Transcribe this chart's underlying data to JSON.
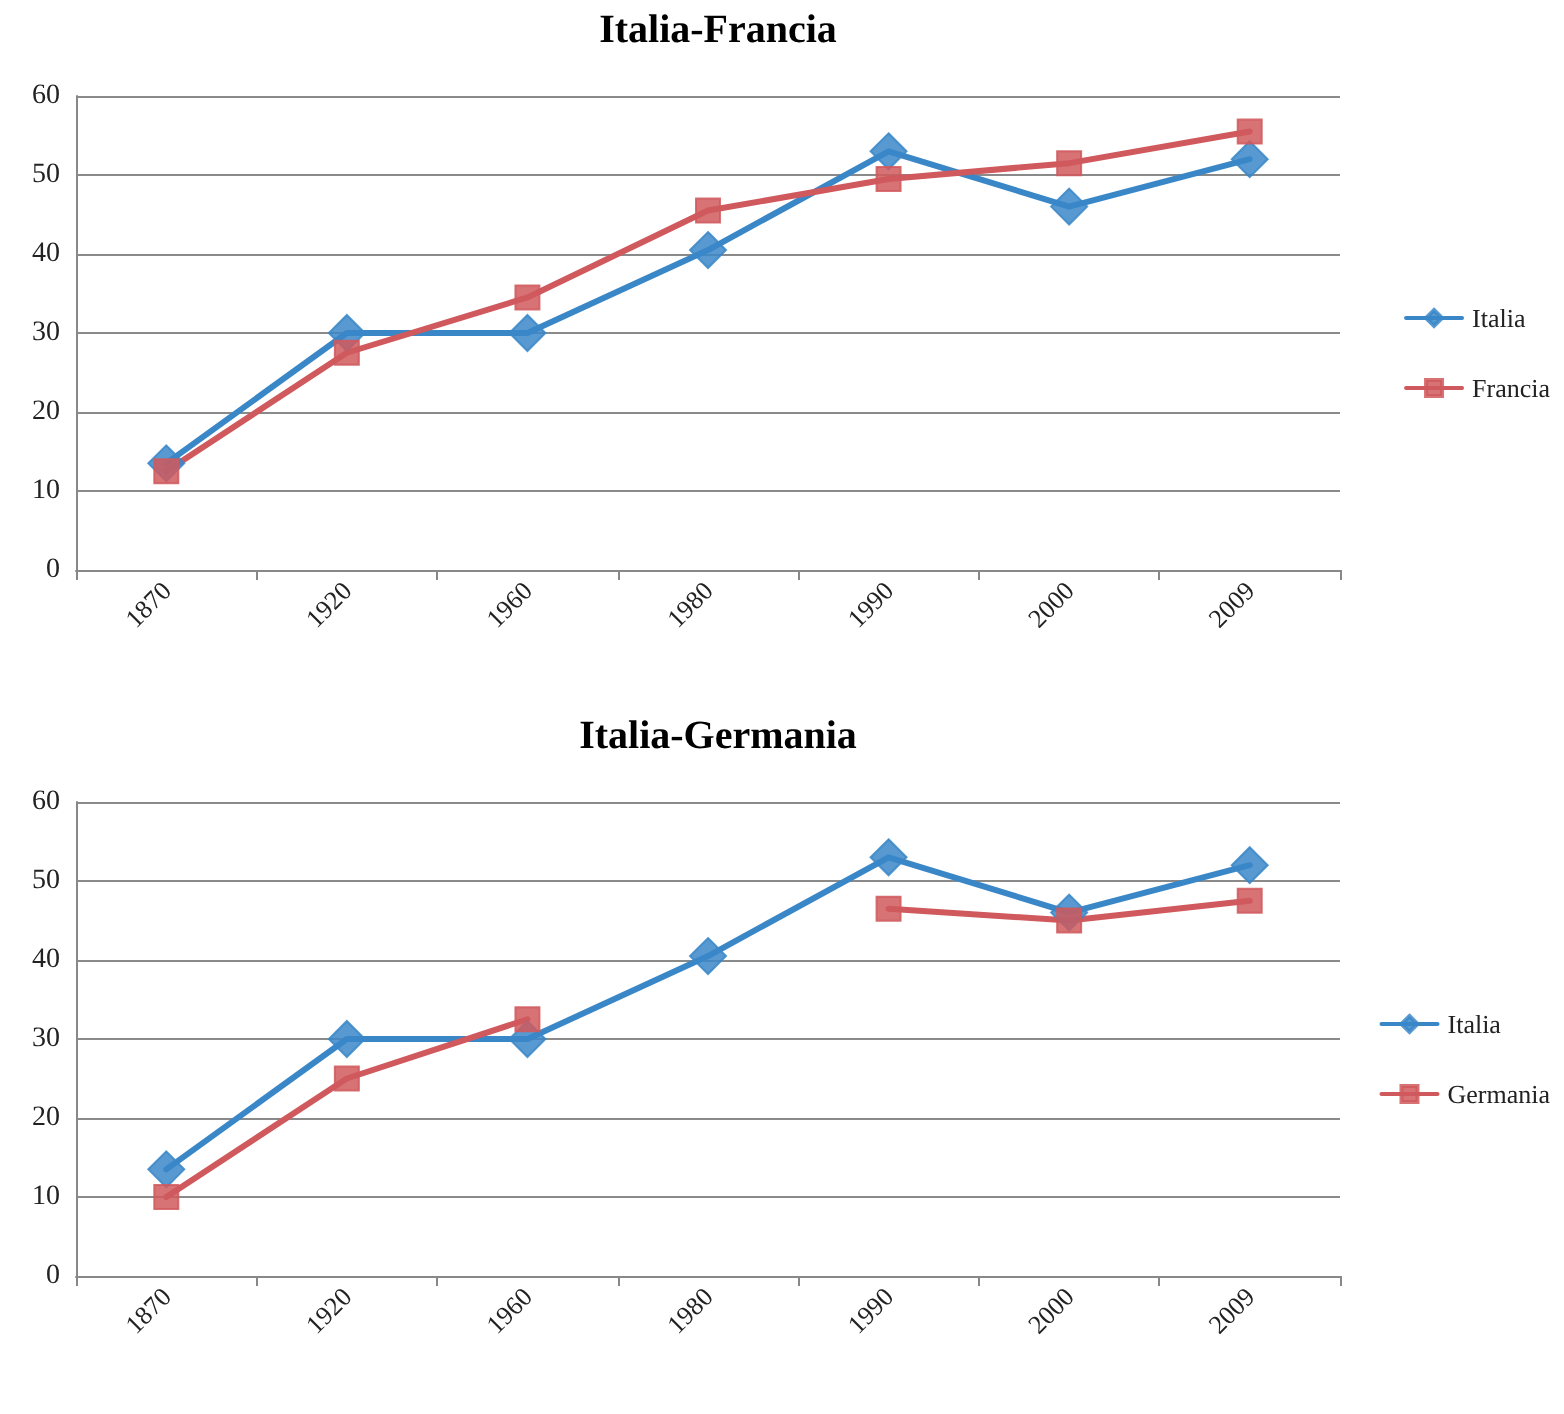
{
  "chart_data": [
    {
      "type": "line",
      "title": "Italia-Francia",
      "categories": [
        "1870",
        "1920",
        "1960",
        "1980",
        "1990",
        "2000",
        "2009"
      ],
      "ylim": [
        0,
        60
      ],
      "yticks": [
        0,
        10,
        20,
        30,
        40,
        50,
        60
      ],
      "grid": "y",
      "legend": "right",
      "series": [
        {
          "name": "Italia",
          "color": "#3a87c8",
          "marker": "diamond",
          "values": [
            13.5,
            30,
            30,
            40.5,
            53,
            46,
            52
          ]
        },
        {
          "name": "Francia",
          "color": "#d0595d",
          "marker": "square",
          "values": [
            12.5,
            27.5,
            34.5,
            45.5,
            49.5,
            51.5,
            55.5
          ]
        }
      ]
    },
    {
      "type": "line",
      "title": "Italia-Germania",
      "categories": [
        "1870",
        "1920",
        "1960",
        "1980",
        "1990",
        "2000",
        "2009"
      ],
      "ylim": [
        0,
        60
      ],
      "yticks": [
        0,
        10,
        20,
        30,
        40,
        50,
        60
      ],
      "grid": "y",
      "legend": "right",
      "series": [
        {
          "name": "Italia",
          "color": "#3a87c8",
          "marker": "diamond",
          "values": [
            13.5,
            30,
            30,
            40.5,
            53,
            46,
            52
          ]
        },
        {
          "name": "Germania",
          "color": "#d0595d",
          "marker": "square",
          "values": [
            10,
            25,
            32.5,
            null,
            46.5,
            45,
            47.5
          ]
        }
      ]
    }
  ]
}
